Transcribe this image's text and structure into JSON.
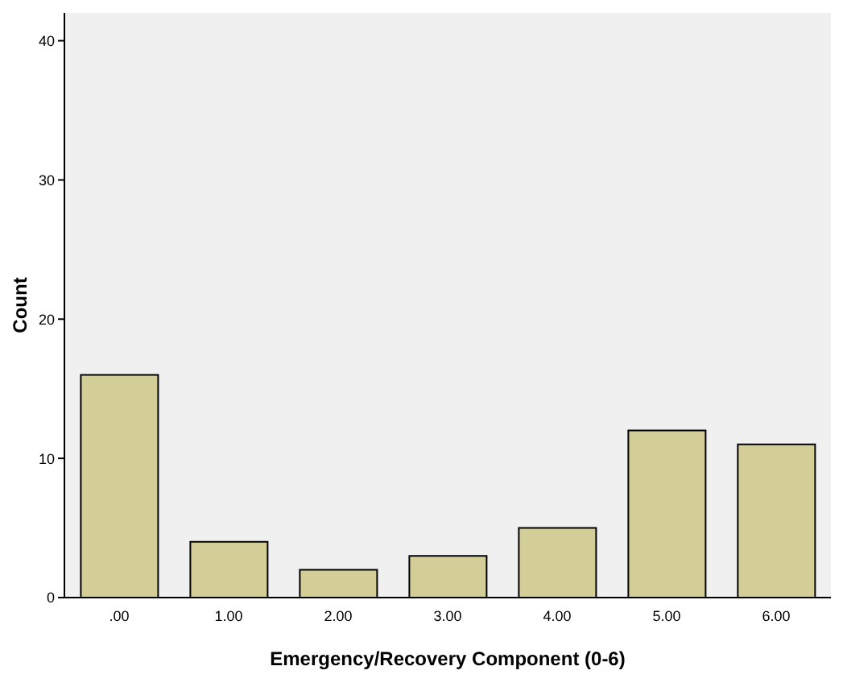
{
  "chart_data": {
    "type": "bar",
    "xlabel": "Emergency/Recovery Component (0-6)",
    "ylabel": "Count",
    "categories": [
      ".00",
      "1.00",
      "2.00",
      "3.00",
      "4.00",
      "5.00",
      "6.00"
    ],
    "values": [
      16,
      4,
      2,
      3,
      5,
      12,
      11
    ],
    "color": "#d3ce97",
    "ylim": [
      0,
      42
    ],
    "yticks": [
      0,
      10,
      20,
      30,
      40
    ],
    "grid": false
  }
}
